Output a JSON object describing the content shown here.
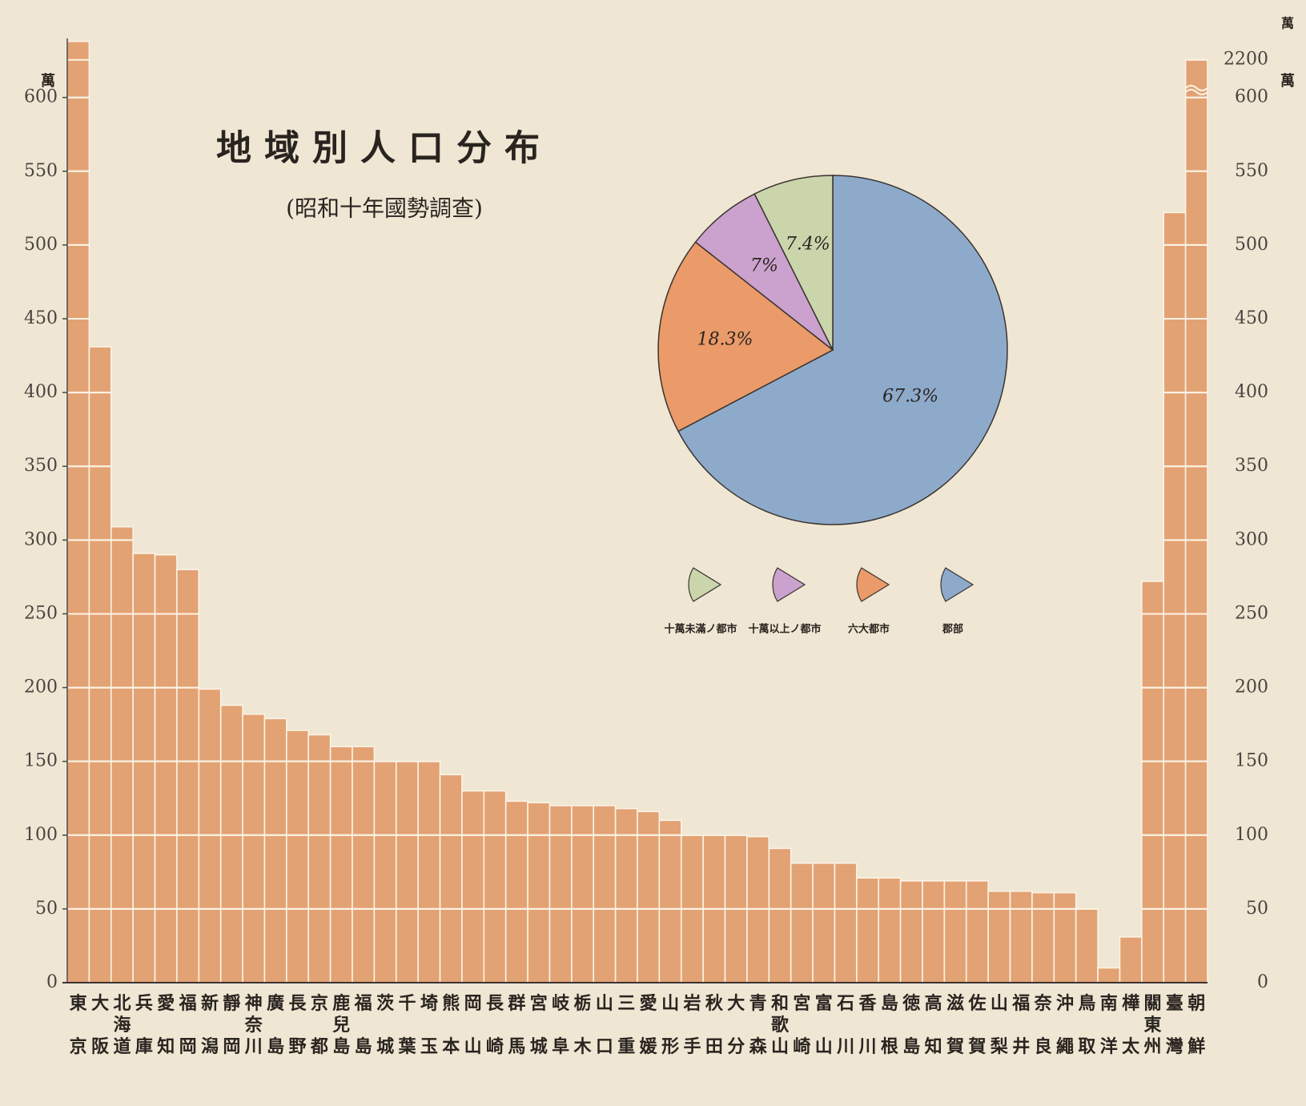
{
  "chart_data": [
    {
      "type": "bar",
      "title": "地域別人口分布",
      "subtitle": "(昭和十年國勢調查)",
      "unit": "萬",
      "categories": [
        "東京",
        "大阪",
        "北海道",
        "兵庫",
        "愛知",
        "福岡",
        "新潟",
        "靜岡",
        "神奈川",
        "廣島",
        "長野",
        "京都",
        "鹿兒島",
        "福島",
        "茨城",
        "千葉",
        "埼玉",
        "熊本",
        "岡山",
        "長崎",
        "群馬",
        "宮城",
        "岐阜",
        "栃木",
        "山口",
        "三重",
        "愛媛",
        "山形",
        "岩手",
        "秋田",
        "大分",
        "青森",
        "和歌山",
        "宮崎",
        "富山",
        "石川",
        "香川",
        "島根",
        "徳島",
        "高知",
        "滋賀",
        "佐賀",
        "山梨",
        "福井",
        "奈良",
        "沖繩",
        "鳥取",
        "南洋",
        "樺太",
        "關東州",
        "臺灣",
        "朝鮮"
      ],
      "series": [
        {
          "color": "#e3a273",
          "values": [
            638,
            431,
            309,
            291,
            290,
            280,
            199,
            188,
            182,
            179,
            171,
            168,
            160,
            160,
            150,
            150,
            150,
            141,
            130,
            130,
            123,
            122,
            120,
            120,
            120,
            118,
            116,
            110,
            100,
            100,
            100,
            99,
            91,
            81,
            81,
            81,
            71,
            71,
            69,
            69,
            69,
            69,
            62,
            62,
            61,
            61,
            50,
            null,
            null,
            null,
            null,
            null
          ]
        },
        {
          "color": "#e3a273",
          "axis": "y2",
          "values": [
            null,
            null,
            null,
            null,
            null,
            null,
            null,
            null,
            null,
            null,
            null,
            null,
            null,
            null,
            null,
            null,
            null,
            null,
            null,
            null,
            null,
            null,
            null,
            null,
            null,
            null,
            null,
            null,
            null,
            null,
            null,
            null,
            null,
            null,
            null,
            null,
            null,
            null,
            null,
            null,
            null,
            null,
            null,
            null,
            null,
            null,
            null,
            10,
            31,
            272,
            522,
            2210
          ]
        }
      ],
      "ylim": [
        0,
        640
      ],
      "yticks": [
        0,
        50,
        100,
        150,
        200,
        250,
        300,
        350,
        400,
        450,
        500,
        550,
        600
      ],
      "y2lim": [
        0,
        2220
      ],
      "y2ticks": [
        0,
        50,
        100,
        150,
        200,
        250,
        300,
        350,
        400,
        450,
        500,
        550,
        600,
        2200
      ],
      "grid": true
    },
    {
      "type": "pie",
      "categories": [
        "郡部",
        "六大都市",
        "十萬以上ノ都市",
        "十萬未滿ノ都市"
      ],
      "values": [
        67.3,
        18.3,
        7,
        7.4
      ],
      "value_labels": [
        "67.3%",
        "18.3%",
        "7%",
        "7.4%"
      ],
      "colors": [
        "#8eaacb",
        "#eb9a69",
        "#cba2cd",
        "#cbd5ab"
      ]
    }
  ]
}
